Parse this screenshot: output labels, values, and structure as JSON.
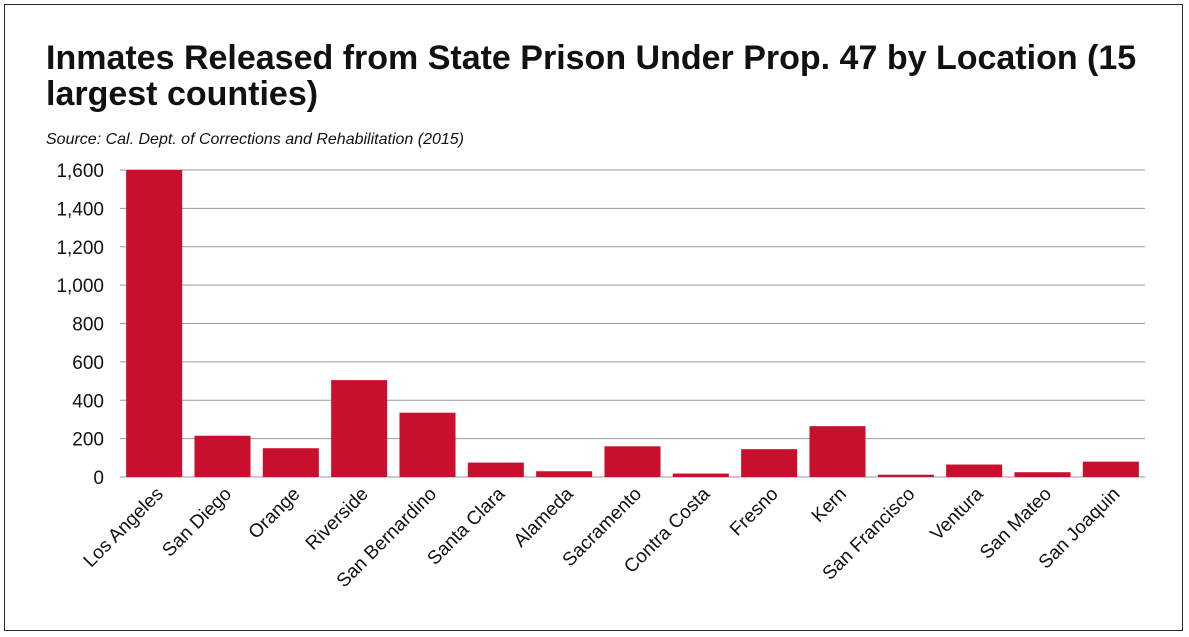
{
  "chart_data": {
    "type": "bar",
    "title": "Inmates Released from State Prison Under Prop. 47 by Location (15 largest counties)",
    "subtitle": "Source: Cal. Dept. of Corrections and Rehabilitation (2015)",
    "xlabel": "",
    "ylabel": "",
    "categories": [
      "Los Angeles",
      "San Diego",
      "Orange",
      "Riverside",
      "San Bernardino",
      "Santa Clara",
      "Alameda",
      "Sacramento",
      "Contra Costa",
      "Fresno",
      "Kern",
      "San Francisco",
      "Ventura",
      "San Mateo",
      "San Joaquin"
    ],
    "values": [
      1600,
      215,
      150,
      505,
      335,
      75,
      30,
      160,
      18,
      145,
      265,
      12,
      65,
      25,
      80
    ],
    "ylim": [
      0,
      1600
    ],
    "yticks": [
      0,
      200,
      400,
      600,
      800,
      1000,
      1200,
      1400,
      1600
    ],
    "ytick_labels": [
      "0",
      "200",
      "400",
      "600",
      "800",
      "1,000",
      "1,200",
      "1,400",
      "1,600"
    ],
    "grid": true,
    "legend": "none",
    "bar_color": "#C8102E",
    "grid_color": "#9a9a9a"
  }
}
